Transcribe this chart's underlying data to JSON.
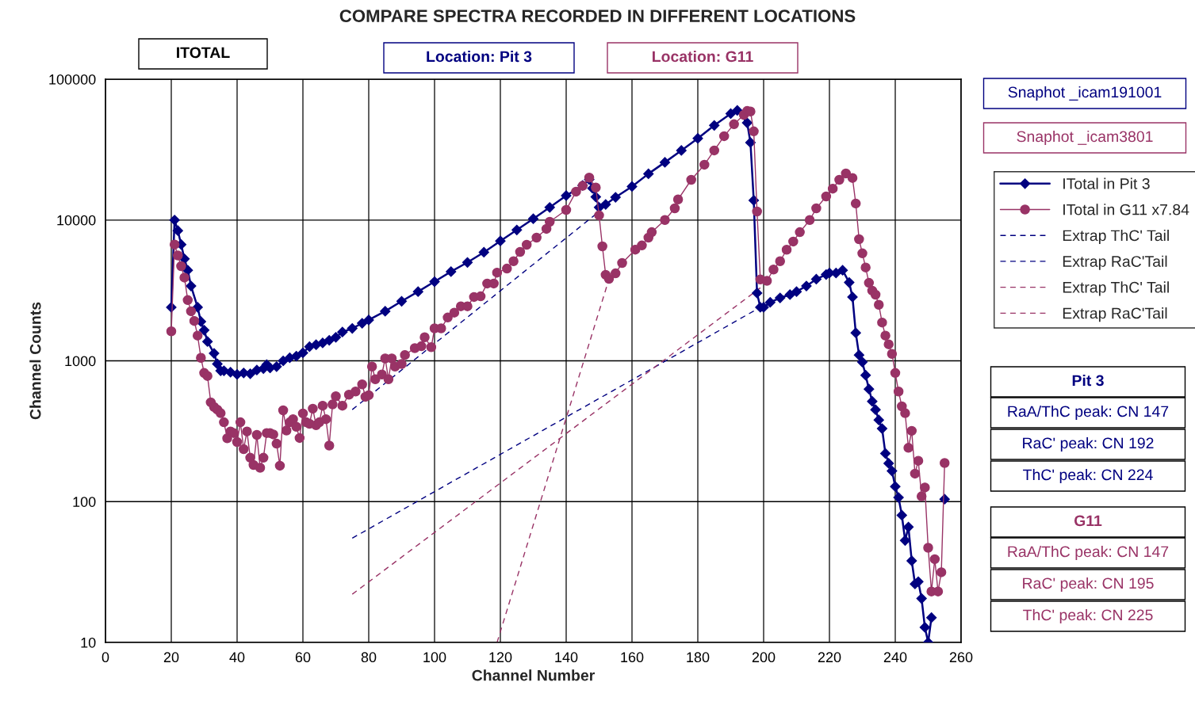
{
  "chart_data": {
    "type": "line",
    "title": "COMPARE SPECTRA RECORDED IN DIFFERENT LOCATIONS",
    "xlabel": "Channel Number",
    "ylabel": "Channel Counts",
    "xlim": [
      0,
      260
    ],
    "xticks": [
      0,
      20,
      40,
      60,
      80,
      100,
      120,
      140,
      160,
      180,
      200,
      220,
      240,
      260
    ],
    "ylim": [
      10,
      100000
    ],
    "yticks": [
      10,
      100,
      1000,
      10000,
      100000
    ],
    "log": "y",
    "grid": true,
    "legend": "right",
    "annotations": [
      "ITOTAL",
      "Location: Pit 3",
      "Location: G11",
      "Snaphot _icam191001",
      "Snaphot _icam3801",
      "Pit 3",
      "RaA/ThC peak: CN 147",
      "RaC' peak: CN 192",
      "ThC' peak: CN 224",
      "G11",
      "RaA/ThC peak: CN 147",
      "RaC' peak: CN 195",
      "ThC' peak: CN 225"
    ],
    "series": [
      {
        "name": "ITotal in Pit 3",
        "color": "#000080",
        "marker": "diamond",
        "line_style": "solid",
        "x": [
          20,
          21,
          22,
          23,
          24,
          25,
          26,
          28,
          29,
          30,
          31,
          33,
          34,
          35,
          36,
          38,
          40,
          42,
          44,
          46,
          48,
          49,
          50,
          52,
          54,
          56,
          58,
          60,
          62,
          64,
          66,
          68,
          70,
          72,
          75,
          78,
          80,
          85,
          90,
          95,
          100,
          105,
          110,
          115,
          120,
          125,
          130,
          135,
          140,
          145,
          147,
          148,
          149,
          150,
          152,
          155,
          160,
          165,
          170,
          175,
          180,
          185,
          190,
          192,
          195,
          196,
          197,
          198,
          199,
          200,
          202,
          205,
          208,
          210,
          213,
          216,
          219,
          220,
          222,
          224,
          226,
          227,
          228,
          229,
          230,
          231,
          232,
          233,
          234,
          235,
          236,
          237,
          238,
          239,
          240,
          241,
          242,
          243,
          244,
          245,
          246,
          247,
          248,
          249,
          250,
          251,
          252,
          253,
          254,
          255
        ],
        "values": [
          2400,
          10000,
          8400,
          6700,
          5300,
          4400,
          3400,
          2400,
          1900,
          1650,
          1370,
          1130,
          950,
          850,
          850,
          830,
          800,
          820,
          810,
          860,
          880,
          940,
          890,
          910,
          1000,
          1050,
          1080,
          1140,
          1260,
          1300,
          1340,
          1400,
          1470,
          1600,
          1700,
          1850,
          1950,
          2250,
          2650,
          3100,
          3650,
          4300,
          5000,
          5900,
          7100,
          8500,
          10200,
          12300,
          14900,
          17600,
          19400,
          16800,
          14600,
          12300,
          12900,
          14500,
          17300,
          21300,
          25700,
          31200,
          38000,
          47000,
          57000,
          60000,
          49000,
          35500,
          13800,
          3030,
          2400,
          2400,
          2600,
          2800,
          2950,
          3100,
          3400,
          3800,
          4100,
          4200,
          4200,
          4400,
          3600,
          2840,
          1580,
          1100,
          980,
          790,
          630,
          515,
          450,
          380,
          330,
          220,
          187,
          165,
          128,
          107,
          80,
          53,
          66,
          38,
          26,
          27,
          20.5,
          12.8,
          10,
          15,
          null,
          null,
          null,
          104
        ]
      },
      {
        "name": "ITotal in G11 x7.84",
        "color": "#993366",
        "marker": "circle",
        "line_style": "solid",
        "x": [
          20,
          21,
          22,
          23,
          24,
          25,
          26,
          27,
          28,
          29,
          30,
          31,
          32,
          33,
          34,
          35,
          36,
          37,
          38,
          39,
          40,
          41,
          42,
          43,
          44,
          45,
          46,
          47,
          48,
          49,
          50,
          51,
          52,
          53,
          54,
          55,
          56,
          57,
          58,
          59,
          60,
          61,
          62,
          63,
          64,
          65,
          66,
          67,
          68,
          69,
          70,
          72,
          74,
          76,
          78,
          79,
          80,
          81,
          82,
          84,
          85,
          86,
          87,
          88,
          90,
          91,
          94,
          96,
          97,
          99,
          100,
          102,
          104,
          106,
          108,
          110,
          112,
          114,
          116,
          118,
          119,
          122,
          124,
          126,
          128,
          131,
          134,
          135,
          140,
          143,
          145,
          147,
          149,
          150,
          151,
          152,
          153,
          155,
          157,
          161,
          163,
          165,
          166,
          170,
          173,
          174,
          178,
          182,
          185,
          188,
          191,
          194,
          195,
          196,
          197,
          198,
          199,
          201,
          203,
          205,
          207,
          209,
          211,
          214,
          216,
          219,
          221,
          223,
          225,
          227,
          228,
          229,
          230,
          231,
          232,
          233,
          234,
          235,
          236,
          237,
          238,
          239,
          240,
          241,
          242,
          243,
          244,
          245,
          246,
          247,
          248,
          249,
          250,
          251,
          252,
          253,
          254,
          255
        ],
        "values": [
          1620,
          6700,
          5600,
          4700,
          3900,
          2700,
          2250,
          1920,
          1510,
          1050,
          820,
          780,
          507,
          470,
          450,
          425,
          366,
          282,
          315,
          307,
          265,
          366,
          236,
          315,
          205,
          182,
          298,
          174,
          205,
          307,
          307,
          300,
          258,
          180,
          445,
          320,
          366,
          385,
          340,
          283,
          423,
          366,
          357,
          457,
          349,
          366,
          480,
          385,
          250,
          490,
          560,
          480,
          575,
          605,
          680,
          555,
          570,
          910,
          740,
          800,
          1040,
          740,
          1040,
          910,
          950,
          1100,
          1230,
          1270,
          1470,
          1250,
          1700,
          1700,
          2030,
          2200,
          2440,
          2440,
          2840,
          2870,
          3540,
          3540,
          4230,
          4520,
          5100,
          5940,
          6670,
          7500,
          8650,
          9710,
          11800,
          15900,
          17500,
          20000,
          17000,
          10800,
          6500,
          4080,
          3820,
          4180,
          4950,
          6160,
          6600,
          7500,
          8200,
          10000,
          12100,
          14000,
          19300,
          24700,
          31200,
          39400,
          47900,
          55800,
          59500,
          59000,
          42600,
          11500,
          3780,
          3700,
          4450,
          5100,
          6150,
          7030,
          8200,
          10000,
          12100,
          14700,
          16700,
          19300,
          21400,
          19900,
          13100,
          7300,
          5800,
          4600,
          3580,
          3150,
          2950,
          2500,
          1870,
          1510,
          1310,
          1120,
          820,
          605,
          475,
          425,
          241,
          318,
          158,
          195,
          109,
          126,
          47,
          23,
          39,
          23,
          31.5,
          188
        ]
      },
      {
        "name": "Extrap ThC' Tail",
        "color": "#000080",
        "marker": "none",
        "line_style": "dashed",
        "x": [
          75,
          149
        ],
        "values": [
          450,
          11000
        ]
      },
      {
        "name": "Extrap RaC'Tail",
        "color": "#000080",
        "marker": "none",
        "line_style": "dashed",
        "x": [
          75,
          199
        ],
        "values": [
          55,
          2400
        ]
      },
      {
        "name": "Extrap ThC' Tail",
        "color": "#993366",
        "marker": "none",
        "line_style": "dashed",
        "x": [
          119,
          153
        ],
        "values": [
          10,
          3800
        ]
      },
      {
        "name": "Extrap RaC'Tail",
        "color": "#993366",
        "marker": "none",
        "line_style": "dashed",
        "x": [
          75,
          199
        ],
        "values": [
          22,
          3300
        ]
      }
    ]
  }
}
